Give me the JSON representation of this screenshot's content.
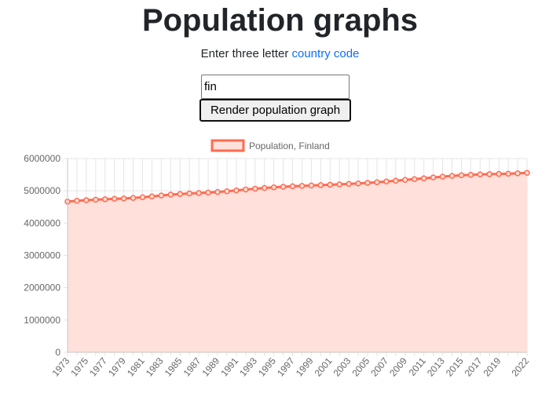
{
  "header": {
    "title": "Population graphs",
    "subtitle_prefix": "Enter three letter ",
    "subtitle_link": "country code"
  },
  "form": {
    "input_value": "fin",
    "button_label": "Render population graph"
  },
  "colors": {
    "line": "#ff6b4f",
    "fill": "#ffe0db",
    "link": "#0d6efd"
  },
  "chart_data": {
    "type": "area",
    "legend": "Population, Finland",
    "legend_position": "top",
    "grid": true,
    "ylim": [
      0,
      6000000
    ],
    "yticks": [
      "0",
      "1000000",
      "2000000",
      "3000000",
      "4000000",
      "5000000",
      "6000000"
    ],
    "x": [
      1973,
      1974,
      1975,
      1976,
      1977,
      1978,
      1979,
      1980,
      1981,
      1982,
      1983,
      1984,
      1985,
      1986,
      1987,
      1988,
      1989,
      1990,
      1991,
      1992,
      1993,
      1994,
      1995,
      1996,
      1997,
      1998,
      1999,
      2000,
      2001,
      2002,
      2003,
      2004,
      2005,
      2006,
      2007,
      2008,
      2009,
      2010,
      2011,
      2012,
      2013,
      2014,
      2015,
      2016,
      2017,
      2018,
      2019,
      2020,
      2021,
      2022
    ],
    "xticks": [
      "1973",
      "1975",
      "1977",
      "1979",
      "1981",
      "1983",
      "1985",
      "1987",
      "1989",
      "1991",
      "1993",
      "1995",
      "1997",
      "1999",
      "2001",
      "2003",
      "2005",
      "2007",
      "2009",
      "2011",
      "2013",
      "2015",
      "2017",
      "2019",
      "2022"
    ],
    "values": [
      4666000,
      4691000,
      4711000,
      4726000,
      4739000,
      4753000,
      4765000,
      4780000,
      4800000,
      4827000,
      4856000,
      4882000,
      4902000,
      4918000,
      4932000,
      4947000,
      4964000,
      4986000,
      5014000,
      5042000,
      5066000,
      5089000,
      5108000,
      5125000,
      5140000,
      5153000,
      5165000,
      5176000,
      5188000,
      5201000,
      5213000,
      5228000,
      5246000,
      5266000,
      5289000,
      5313000,
      5339000,
      5363000,
      5388000,
      5414000,
      5439000,
      5462000,
      5480000,
      5495000,
      5508000,
      5516000,
      5522000,
      5530000,
      5541000,
      5556000
    ]
  }
}
